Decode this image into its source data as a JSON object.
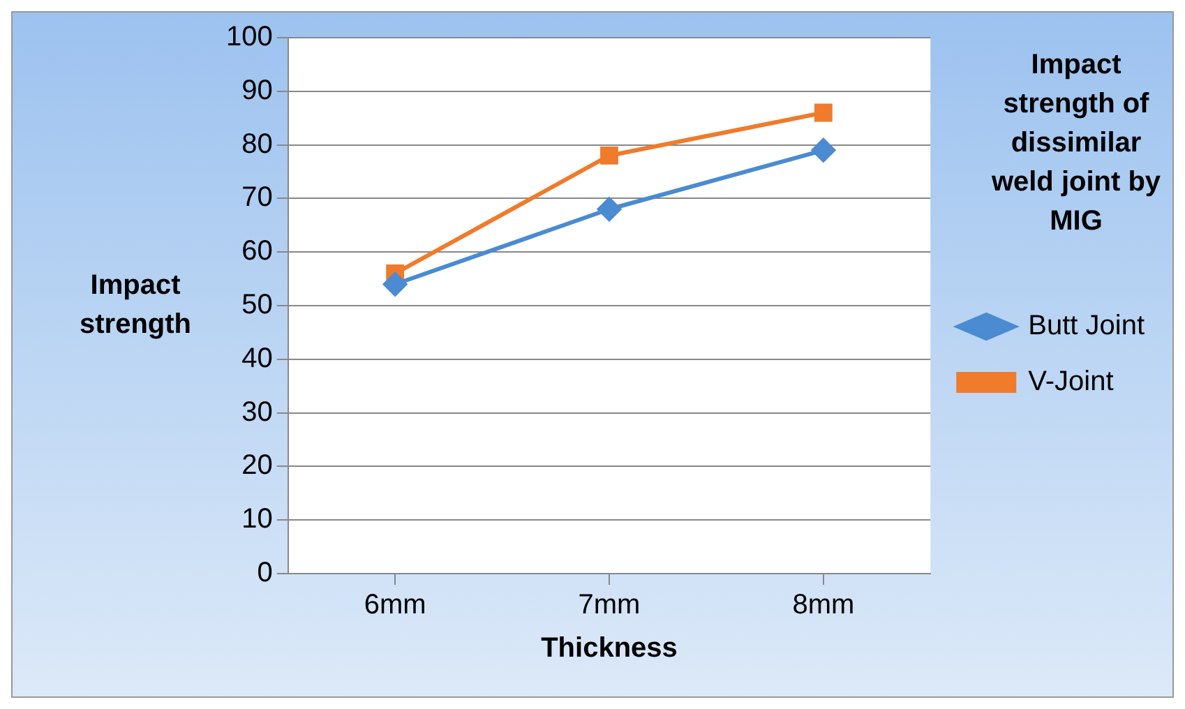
{
  "chart_data": {
    "type": "line",
    "title": "Impact strength of dissimilar weld joint by MIG",
    "xlabel": "Thickness",
    "ylabel": "Impact strength",
    "categories": [
      "6mm",
      "7mm",
      "8mm"
    ],
    "series": [
      {
        "name": "Butt Joint",
        "color": "#4a8bd1",
        "marker": "diamond",
        "values": [
          54,
          68,
          79
        ]
      },
      {
        "name": "V-Joint",
        "color": "#f07b2b",
        "marker": "square",
        "values": [
          56,
          78,
          86
        ]
      }
    ],
    "ylim": [
      0,
      100
    ],
    "yticks": [
      0,
      10,
      20,
      30,
      40,
      50,
      60,
      70,
      80,
      90,
      100
    ],
    "grid": "y",
    "legend": "right",
    "line_style": "solid"
  }
}
